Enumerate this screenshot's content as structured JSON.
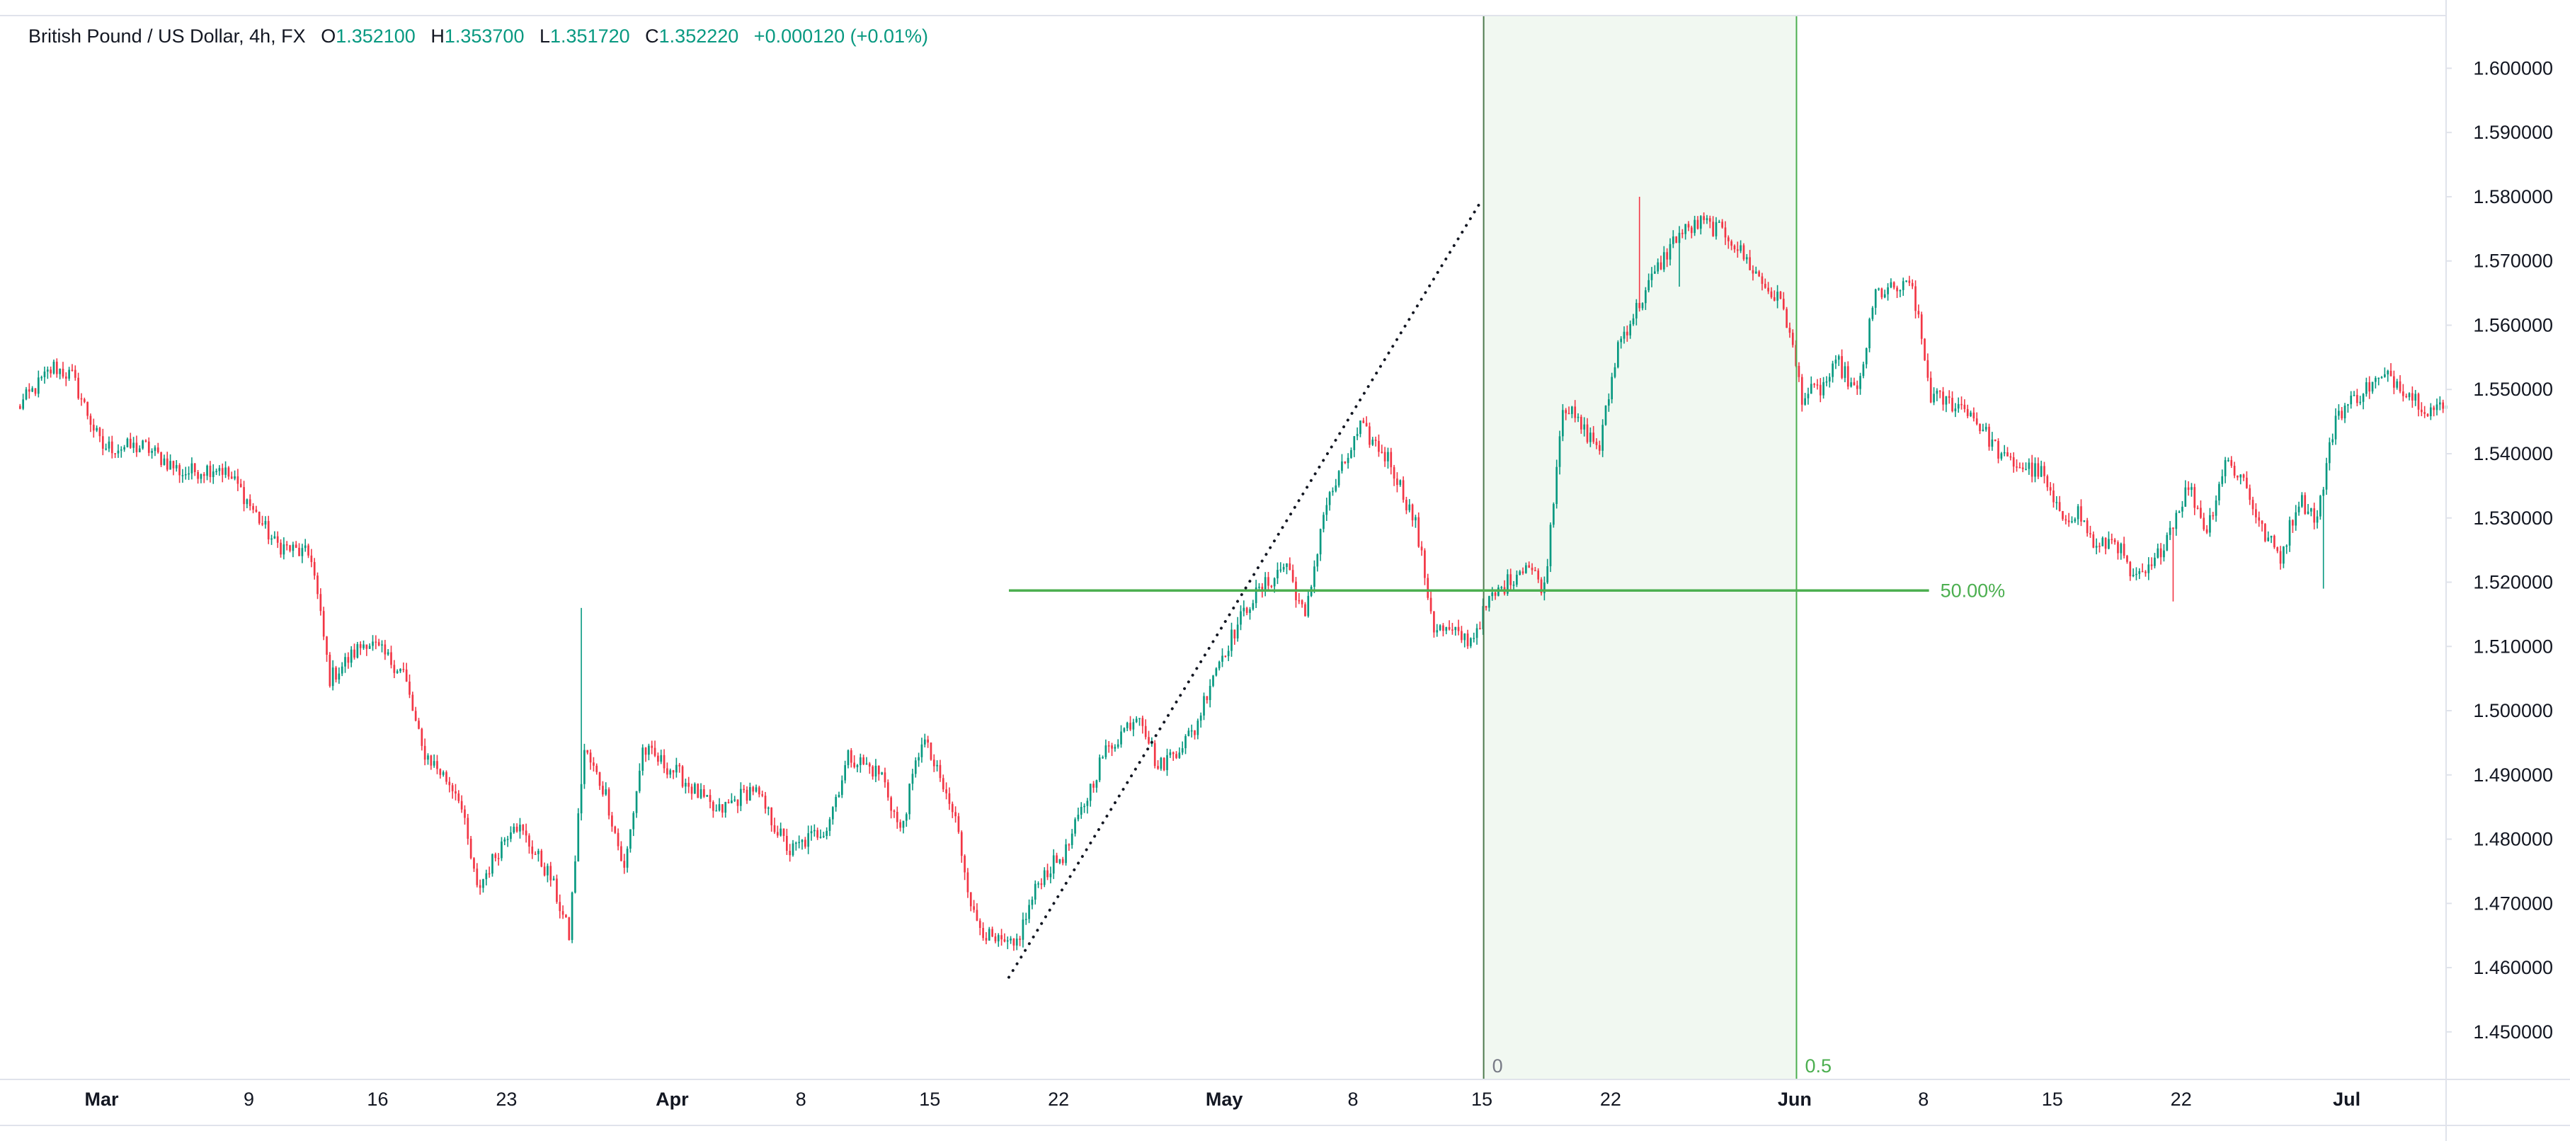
{
  "legend": {
    "symbol": "British Pound / US Dollar, 4h, FX",
    "open_label": "O",
    "open": "1.352100",
    "high_label": "H",
    "high": "1.353700",
    "low_label": "L",
    "low": "1.351720",
    "close_label": "C",
    "close": "1.352220",
    "change": "+0.000120 (+0.01%)"
  },
  "colors": {
    "up": "#089981",
    "down": "#f23645",
    "fib_line": "#4caf50",
    "fib_label": "#4caf50",
    "zone_fill": "#f1f8f1",
    "vline": "#4d7a4d",
    "axis_text": "#131722",
    "border": "#e0e3eb"
  },
  "chart_data": {
    "type": "candlestick",
    "title": "British Pound / US Dollar, 4h, FX",
    "y_axis": {
      "ticks": [
        "1.450000",
        "1.460000",
        "1.470000",
        "1.480000",
        "1.490000",
        "1.500000",
        "1.510000",
        "1.520000",
        "1.530000",
        "1.540000",
        "1.550000",
        "1.560000",
        "1.570000",
        "1.580000",
        "1.590000",
        "1.600000"
      ],
      "range": [
        1.4426,
        1.6082
      ],
      "position": "right"
    },
    "x_axis": {
      "labels": [
        {
          "text": "Mar",
          "month": true,
          "day": 0
        },
        {
          "text": "9",
          "month": false,
          "day": 8
        },
        {
          "text": "16",
          "month": false,
          "day": 15
        },
        {
          "text": "23",
          "month": false,
          "day": 22
        },
        {
          "text": "Apr",
          "month": true,
          "day": 31
        },
        {
          "text": "8",
          "month": false,
          "day": 38
        },
        {
          "text": "15",
          "month": false,
          "day": 45
        },
        {
          "text": "22",
          "month": false,
          "day": 52
        },
        {
          "text": "May",
          "month": true,
          "day": 61
        },
        {
          "text": "8",
          "month": false,
          "day": 68
        },
        {
          "text": "15",
          "month": false,
          "day": 75
        },
        {
          "text": "22",
          "month": false,
          "day": 82
        },
        {
          "text": "Jun",
          "month": true,
          "day": 92
        },
        {
          "text": "8",
          "month": false,
          "day": 99
        },
        {
          "text": "15",
          "month": false,
          "day": 106
        },
        {
          "text": "22",
          "month": false,
          "day": 113
        },
        {
          "text": "Jul",
          "month": true,
          "day": 122
        }
      ],
      "range": [
        -4.6,
        127.4
      ]
    },
    "anchors": [
      {
        "day": -4.6,
        "price": 1.547
      },
      {
        "day": -2.6,
        "price": 1.5535
      },
      {
        "day": -1.6,
        "price": 1.552
      },
      {
        "day": 0.0,
        "price": 1.541
      },
      {
        "day": 2.4,
        "price": 1.541
      },
      {
        "day": 4.4,
        "price": 1.537
      },
      {
        "day": 6.4,
        "price": 1.538
      },
      {
        "day": 7.4,
        "price": 1.535
      },
      {
        "day": 9.4,
        "price": 1.526
      },
      {
        "day": 11.4,
        "price": 1.524
      },
      {
        "day": 12.4,
        "price": 1.505
      },
      {
        "day": 14.4,
        "price": 1.511
      },
      {
        "day": 16.4,
        "price": 1.506
      },
      {
        "day": 17.4,
        "price": 1.494
      },
      {
        "day": 19.4,
        "price": 1.487
      },
      {
        "day": 20.4,
        "price": 1.472
      },
      {
        "day": 22.4,
        "price": 1.483
      },
      {
        "day": 24.4,
        "price": 1.474
      },
      {
        "day": 25.4,
        "price": 1.465
      },
      {
        "day": 26.2,
        "price": 1.494
      },
      {
        "day": 27.4,
        "price": 1.487
      },
      {
        "day": 28.4,
        "price": 1.475
      },
      {
        "day": 29.4,
        "price": 1.494
      },
      {
        "day": 31.4,
        "price": 1.49
      },
      {
        "day": 33.4,
        "price": 1.484
      },
      {
        "day": 35.4,
        "price": 1.488
      },
      {
        "day": 37.4,
        "price": 1.478
      },
      {
        "day": 39.4,
        "price": 1.482
      },
      {
        "day": 40.6,
        "price": 1.493
      },
      {
        "day": 42.4,
        "price": 1.49
      },
      {
        "day": 43.4,
        "price": 1.481
      },
      {
        "day": 44.6,
        "price": 1.496
      },
      {
        "day": 46.4,
        "price": 1.483
      },
      {
        "day": 47.4,
        "price": 1.468
      },
      {
        "day": 48.4,
        "price": 1.464
      },
      {
        "day": 49.6,
        "price": 1.463
      },
      {
        "day": 51.0,
        "price": 1.474
      },
      {
        "day": 52.4,
        "price": 1.478
      },
      {
        "day": 54.4,
        "price": 1.493
      },
      {
        "day": 56.4,
        "price": 1.5
      },
      {
        "day": 57.4,
        "price": 1.491
      },
      {
        "day": 59.4,
        "price": 1.497
      },
      {
        "day": 60.4,
        "price": 1.506
      },
      {
        "day": 62.4,
        "price": 1.517
      },
      {
        "day": 64.4,
        "price": 1.523
      },
      {
        "day": 65.4,
        "price": 1.514
      },
      {
        "day": 66.4,
        "price": 1.531
      },
      {
        "day": 68.4,
        "price": 1.544
      },
      {
        "day": 70.0,
        "price": 1.539
      },
      {
        "day": 71.4,
        "price": 1.529
      },
      {
        "day": 72.4,
        "price": 1.513
      },
      {
        "day": 74.4,
        "price": 1.511
      },
      {
        "day": 75.4,
        "price": 1.517
      },
      {
        "day": 77.4,
        "price": 1.523
      },
      {
        "day": 78.4,
        "price": 1.519
      },
      {
        "day": 79.4,
        "price": 1.548
      },
      {
        "day": 80.4,
        "price": 1.544
      },
      {
        "day": 81.4,
        "price": 1.541
      },
      {
        "day": 82.4,
        "price": 1.557
      },
      {
        "day": 84.4,
        "price": 1.568
      },
      {
        "day": 85.6,
        "price": 1.574
      },
      {
        "day": 87.0,
        "price": 1.576
      },
      {
        "day": 88.4,
        "price": 1.574
      },
      {
        "day": 90.4,
        "price": 1.566
      },
      {
        "day": 91.4,
        "price": 1.563
      },
      {
        "day": 92.4,
        "price": 1.549
      },
      {
        "day": 93.4,
        "price": 1.55
      },
      {
        "day": 94.4,
        "price": 1.554
      },
      {
        "day": 95.4,
        "price": 1.549
      },
      {
        "day": 96.4,
        "price": 1.565
      },
      {
        "day": 98.4,
        "price": 1.566
      },
      {
        "day": 99.4,
        "price": 1.549
      },
      {
        "day": 101.4,
        "price": 1.547
      },
      {
        "day": 102.4,
        "price": 1.543
      },
      {
        "day": 103.4,
        "price": 1.539
      },
      {
        "day": 105.4,
        "price": 1.537
      },
      {
        "day": 106.4,
        "price": 1.53
      },
      {
        "day": 107.4,
        "price": 1.531
      },
      {
        "day": 108.4,
        "price": 1.525
      },
      {
        "day": 109.4,
        "price": 1.527
      },
      {
        "day": 110.4,
        "price": 1.52
      },
      {
        "day": 111.4,
        "price": 1.522
      },
      {
        "day": 113.4,
        "price": 1.535
      },
      {
        "day": 114.4,
        "price": 1.528
      },
      {
        "day": 115.4,
        "price": 1.539
      },
      {
        "day": 116.4,
        "price": 1.536
      },
      {
        "day": 117.4,
        "price": 1.528
      },
      {
        "day": 118.4,
        "price": 1.524
      },
      {
        "day": 119.4,
        "price": 1.533
      },
      {
        "day": 120.4,
        "price": 1.53
      },
      {
        "day": 121.4,
        "price": 1.546
      },
      {
        "day": 123.4,
        "price": 1.551
      },
      {
        "day": 124.4,
        "price": 1.552
      },
      {
        "day": 126.4,
        "price": 1.547
      },
      {
        "day": 127.4,
        "price": 1.547
      }
    ],
    "events": [
      {
        "day": 26.0,
        "price": 1.516
      },
      {
        "day": 83.6,
        "price": 1.58
      },
      {
        "day": 85.8,
        "price": 1.566
      },
      {
        "day": 112.6,
        "price": 1.517
      },
      {
        "day": 120.8,
        "price": 1.519
      }
    ],
    "overlays": {
      "trend_line": {
        "from": {
          "day": 49.3,
          "price": 1.4585
        },
        "to": {
          "day": 75.0,
          "price": 1.5795
        },
        "style": "dotted"
      },
      "time_zone": {
        "from_day": 75.1,
        "to_day": 92.1
      },
      "vertical_lines": [
        {
          "day": 75.1,
          "label": "0"
        },
        {
          "day": 92.1,
          "label": "0.5"
        }
      ],
      "fib_level": {
        "price": 1.5187,
        "from_day": 49.3,
        "to_day": 99.3,
        "label": "50.00%"
      }
    }
  }
}
